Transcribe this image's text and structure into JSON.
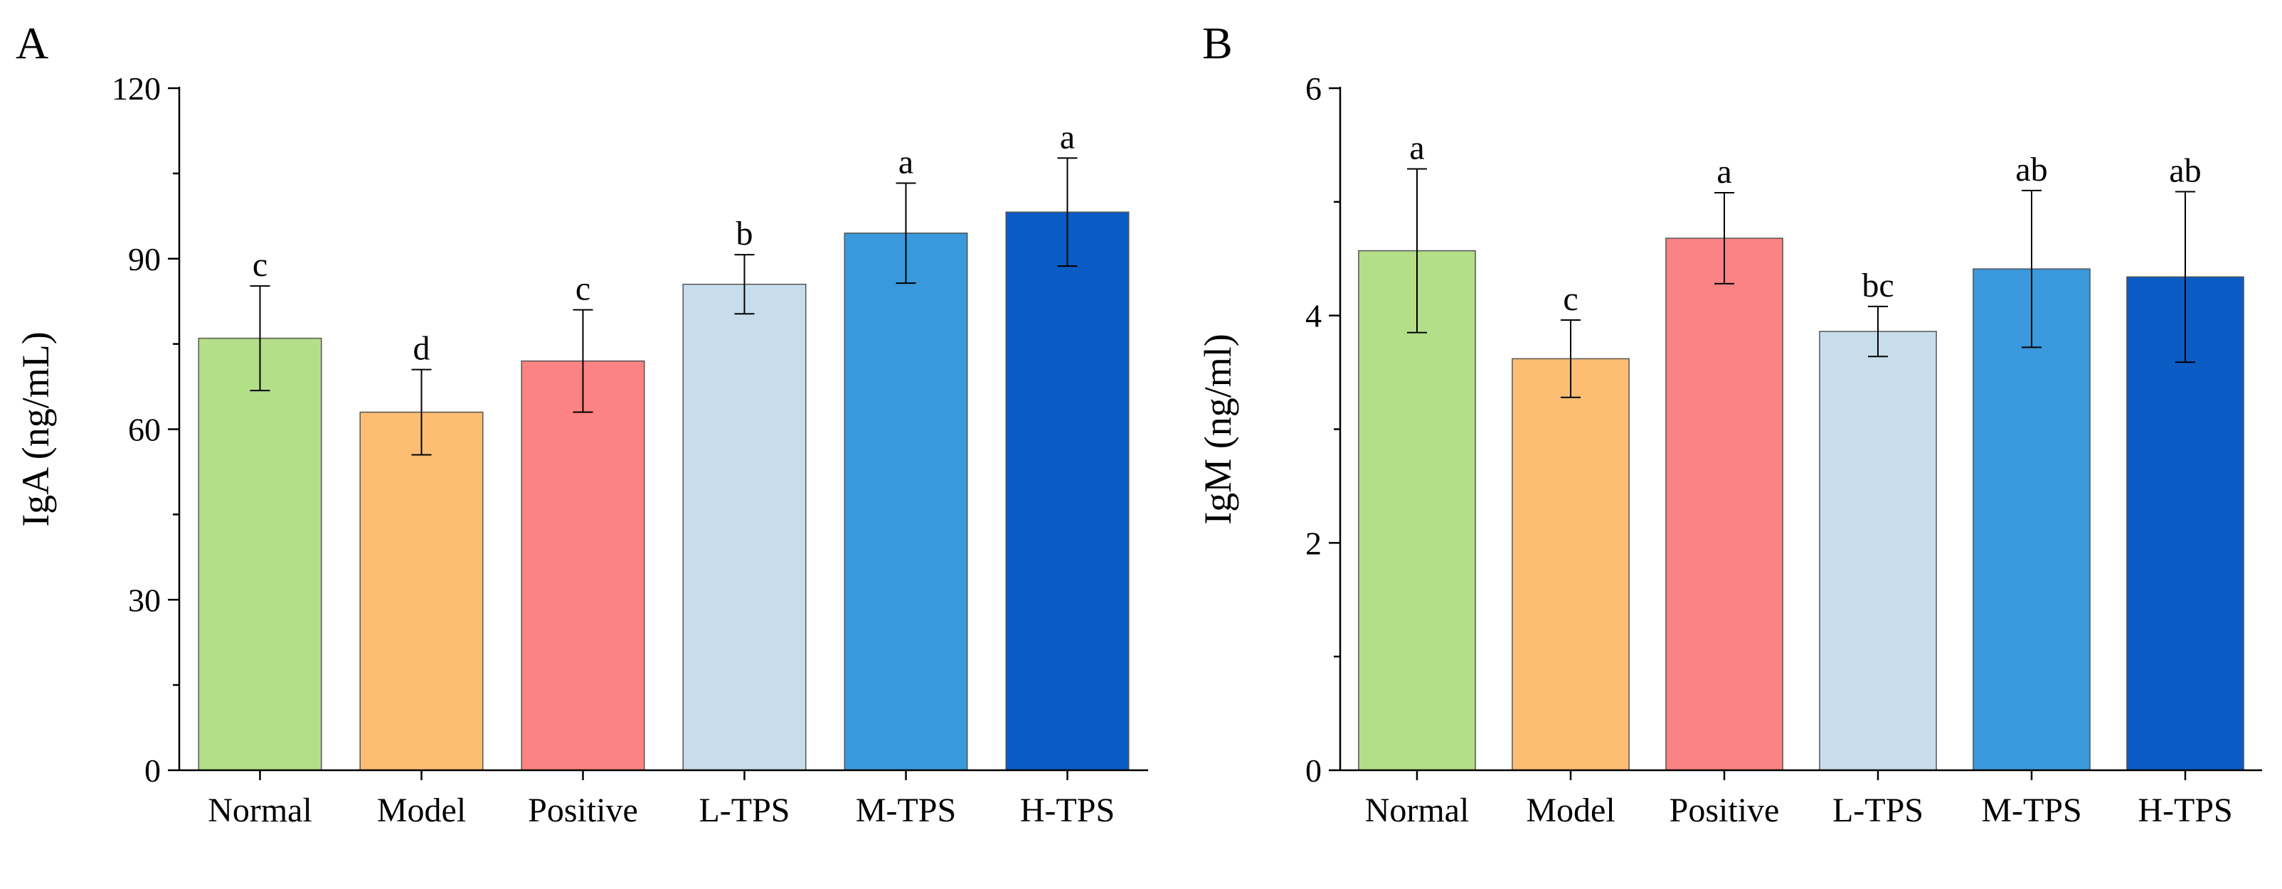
{
  "chart_data": [
    {
      "panel": "A",
      "type": "bar",
      "ylabel": "IgA (ng/mL)",
      "xlabel": "",
      "ylim": [
        0,
        120
      ],
      "yticks": [
        0,
        30,
        60,
        90,
        120
      ],
      "tick_labels": [
        "0",
        "30",
        "60",
        "90",
        "120"
      ],
      "categories": [
        "Normal",
        "Model",
        "Positive",
        "L-TPS",
        "M-TPS",
        "H-TPS"
      ],
      "values": [
        76,
        63,
        72,
        85.5,
        94.5,
        98.2
      ],
      "errors": [
        9.2,
        7.5,
        9,
        5.2,
        8.8,
        9.5
      ],
      "significance": [
        "c",
        "d",
        "c",
        "b",
        "a",
        "a"
      ],
      "colors": [
        "#b3df88",
        "#fdbe73",
        "#fc8383",
        "#c8ddec",
        "#3a98dc",
        "#0a5bc4"
      ]
    },
    {
      "panel": "B",
      "type": "bar",
      "ylabel": "IgM (ng/ml)",
      "xlabel": "",
      "ylim": [
        0,
        6
      ],
      "yticks": [
        0,
        2,
        4,
        6
      ],
      "tick_labels": [
        "0",
        "2",
        "4",
        "6"
      ],
      "categories": [
        "Normal",
        "Model",
        "Positive",
        "L-TPS",
        "M-TPS",
        "H-TPS"
      ],
      "values": [
        4.57,
        3.62,
        4.68,
        3.86,
        4.41,
        4.34
      ],
      "errors": [
        0.72,
        0.34,
        0.4,
        0.22,
        0.69,
        0.75
      ],
      "significance": [
        "a",
        "c",
        "a",
        "bc",
        "ab",
        "ab"
      ],
      "colors": [
        "#b3df88",
        "#fdbe73",
        "#fc8383",
        "#c8ddec",
        "#3a98dc",
        "#0a5bc4"
      ]
    }
  ]
}
